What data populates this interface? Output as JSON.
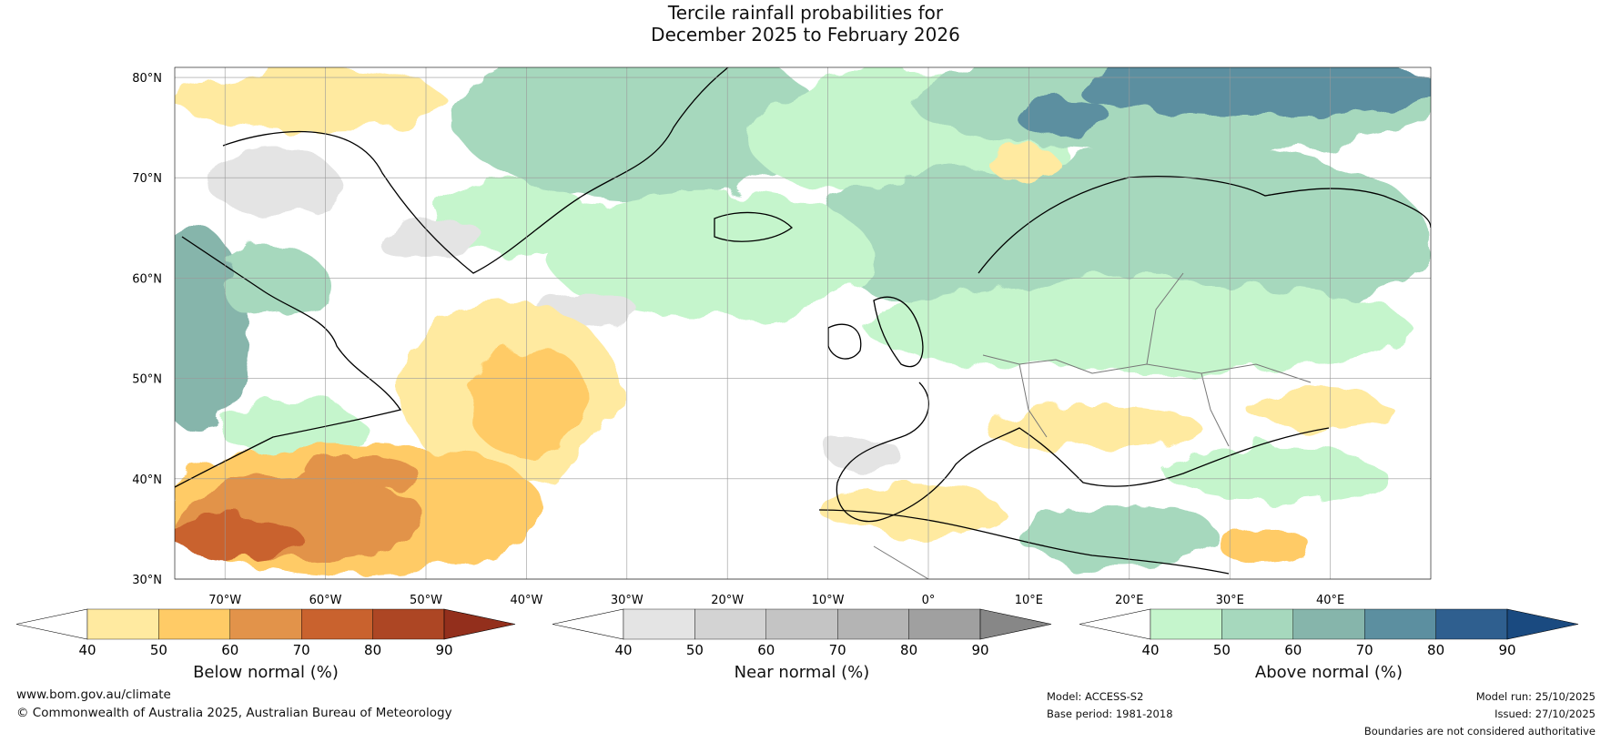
{
  "title": {
    "line1": "Tercile rainfall probabilities for",
    "line2": "December 2025 to February 2026"
  },
  "map": {
    "lat_labels": [
      "80°N",
      "70°N",
      "60°N",
      "50°N",
      "40°N",
      "30°N"
    ],
    "lon_labels": [
      "70°W",
      "60°W",
      "50°W",
      "40°W",
      "30°W",
      "20°W",
      "10°W",
      "0°",
      "10°E",
      "20°E",
      "30°E",
      "40°E"
    ],
    "extent": {
      "lon_min": -75,
      "lon_max": 50,
      "lat_min": 30,
      "lat_max": 81
    }
  },
  "colorbars": [
    {
      "label": "Below normal (%)",
      "ticks": [
        "40",
        "50",
        "60",
        "70",
        "80",
        "90"
      ],
      "colors": [
        "#ffffff",
        "#ffeaa0",
        "#ffcb66",
        "#e2934a",
        "#c9622e",
        "#ad4624",
        "#932f1c"
      ]
    },
    {
      "label": "Near normal (%)",
      "ticks": [
        "40",
        "50",
        "60",
        "70",
        "80",
        "90"
      ],
      "colors": [
        "#ffffff",
        "#e4e4e4",
        "#d3d3d3",
        "#c4c4c4",
        "#b4b4b4",
        "#a0a0a0",
        "#878787"
      ]
    },
    {
      "label": "Above normal (%)",
      "ticks": [
        "40",
        "50",
        "60",
        "70",
        "80",
        "90"
      ],
      "colors": [
        "#ffffff",
        "#c5f5cc",
        "#a6d8bd",
        "#86b5ab",
        "#5c8fa0",
        "#2f5f8f",
        "#1a4a80"
      ]
    }
  ],
  "footer": {
    "website": "www.bom.gov.au/climate",
    "copyright": "© Commonwealth of Australia 2025, Australian Bureau of Meteorology",
    "model": "Model: ACCESS-S2",
    "base_period": "Base period: 1981-2018",
    "model_run": "Model run: 25/10/2025",
    "issued": "Issued: 27/10/2025",
    "disclaimer": "Boundaries are not considered authoritative"
  }
}
